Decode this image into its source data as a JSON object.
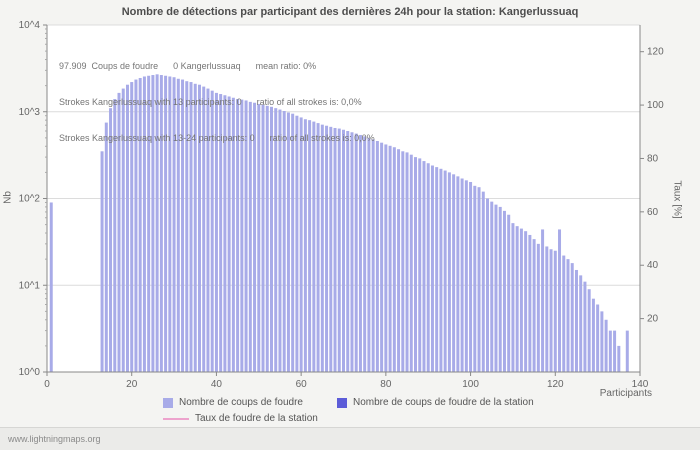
{
  "footer": {
    "watermark": "www.lightningmaps.org"
  },
  "chart_data": {
    "type": "bar",
    "title": "Nombre de détections par participant des dernières 24h pour la station: Kangerlussuaq",
    "annotations": [
      "97.909  Coups de foudre      0 Kangerlussuaq      mean ratio: 0%",
      "Strokes Kangerlussuaq with 13 participants: 0      ratio of all strokes is: 0,0%",
      "Strokes Kangerlussuaq with 13-24 participants: 0      ratio of all strokes is: 0,0%"
    ],
    "x_axis": {
      "label": "Participants",
      "min": 0,
      "max": 140,
      "ticks": [
        0,
        20,
        40,
        60,
        80,
        100,
        120,
        140
      ]
    },
    "y_axis_left": {
      "label": "Nb",
      "scale": "log",
      "min_exp": 0,
      "max_exp": 4,
      "tick_labels": [
        "10^0",
        "10^1",
        "10^2",
        "10^3",
        "10^4"
      ]
    },
    "y_axis_right": {
      "label": "Taux [%]",
      "min": 0,
      "max": 130,
      "ticks": [
        20,
        40,
        60,
        80,
        100,
        120
      ]
    },
    "grid": "horizontal-decades",
    "legend_position": "bottom",
    "series": [
      {
        "name": "Nombre de coups de foudre",
        "color": "#a8abe8",
        "points": [
          [
            1,
            90
          ],
          [
            13,
            350
          ],
          [
            14,
            750
          ],
          [
            15,
            1100
          ],
          [
            16,
            1400
          ],
          [
            17,
            1650
          ],
          [
            18,
            1850
          ],
          [
            19,
            2050
          ],
          [
            20,
            2200
          ],
          [
            21,
            2350
          ],
          [
            22,
            2450
          ],
          [
            23,
            2550
          ],
          [
            24,
            2600
          ],
          [
            25,
            2650
          ],
          [
            26,
            2700
          ],
          [
            27,
            2650
          ],
          [
            28,
            2600
          ],
          [
            29,
            2550
          ],
          [
            30,
            2500
          ],
          [
            31,
            2400
          ],
          [
            32,
            2350
          ],
          [
            33,
            2250
          ],
          [
            34,
            2200
          ],
          [
            35,
            2100
          ],
          [
            36,
            2050
          ],
          [
            37,
            1950
          ],
          [
            38,
            1850
          ],
          [
            39,
            1750
          ],
          [
            40,
            1650
          ],
          [
            41,
            1600
          ],
          [
            42,
            1550
          ],
          [
            43,
            1500
          ],
          [
            44,
            1450
          ],
          [
            45,
            1400
          ],
          [
            46,
            1380
          ],
          [
            47,
            1350
          ],
          [
            48,
            1300
          ],
          [
            49,
            1270
          ],
          [
            50,
            1230
          ],
          [
            51,
            1200
          ],
          [
            52,
            1170
          ],
          [
            53,
            1140
          ],
          [
            54,
            1100
          ],
          [
            55,
            1060
          ],
          [
            56,
            1020
          ],
          [
            57,
            980
          ],
          [
            58,
            950
          ],
          [
            59,
            900
          ],
          [
            60,
            860
          ],
          [
            61,
            820
          ],
          [
            62,
            800
          ],
          [
            63,
            770
          ],
          [
            64,
            740
          ],
          [
            65,
            710
          ],
          [
            66,
            690
          ],
          [
            67,
            670
          ],
          [
            68,
            650
          ],
          [
            69,
            640
          ],
          [
            70,
            620
          ],
          [
            71,
            600
          ],
          [
            72,
            580
          ],
          [
            73,
            560
          ],
          [
            74,
            540
          ],
          [
            75,
            520
          ],
          [
            76,
            500
          ],
          [
            77,
            480
          ],
          [
            78,
            460
          ],
          [
            79,
            440
          ],
          [
            80,
            420
          ],
          [
            81,
            405
          ],
          [
            82,
            390
          ],
          [
            83,
            370
          ],
          [
            84,
            350
          ],
          [
            85,
            340
          ],
          [
            86,
            320
          ],
          [
            87,
            300
          ],
          [
            88,
            290
          ],
          [
            89,
            270
          ],
          [
            90,
            255
          ],
          [
            91,
            240
          ],
          [
            92,
            230
          ],
          [
            93,
            220
          ],
          [
            94,
            210
          ],
          [
            95,
            200
          ],
          [
            96,
            190
          ],
          [
            97,
            180
          ],
          [
            98,
            170
          ],
          [
            99,
            162
          ],
          [
            100,
            155
          ],
          [
            101,
            140
          ],
          [
            102,
            135
          ],
          [
            103,
            120
          ],
          [
            104,
            100
          ],
          [
            105,
            92
          ],
          [
            106,
            85
          ],
          [
            107,
            80
          ],
          [
            108,
            72
          ],
          [
            109,
            65
          ],
          [
            110,
            52
          ],
          [
            111,
            48
          ],
          [
            112,
            45
          ],
          [
            113,
            42
          ],
          [
            114,
            38
          ],
          [
            115,
            34
          ],
          [
            116,
            30
          ],
          [
            117,
            44
          ],
          [
            118,
            28
          ],
          [
            119,
            26
          ],
          [
            120,
            25
          ],
          [
            121,
            44
          ],
          [
            122,
            22
          ],
          [
            123,
            20
          ],
          [
            124,
            18
          ],
          [
            125,
            15
          ],
          [
            126,
            13
          ],
          [
            127,
            11
          ],
          [
            128,
            9
          ],
          [
            129,
            7
          ],
          [
            130,
            6
          ],
          [
            131,
            5
          ],
          [
            132,
            4
          ],
          [
            133,
            3
          ],
          [
            134,
            3
          ],
          [
            135,
            2
          ],
          [
            137,
            3
          ]
        ]
      },
      {
        "name": "Nombre de coups de foudre de la station",
        "color": "#5c5cd8",
        "points": []
      },
      {
        "name": "Taux de foudre de la station",
        "color": "#eda3cd",
        "type": "line",
        "points": []
      }
    ],
    "legend": [
      {
        "label": "Nombre de coups de foudre",
        "color": "#a8abe8",
        "shape": "square"
      },
      {
        "label": "Nombre de coups de foudre de la station",
        "color": "#5c5cd8",
        "shape": "square"
      },
      {
        "label": "Taux de foudre de la station",
        "color": "#eda3cd",
        "shape": "line"
      }
    ]
  }
}
